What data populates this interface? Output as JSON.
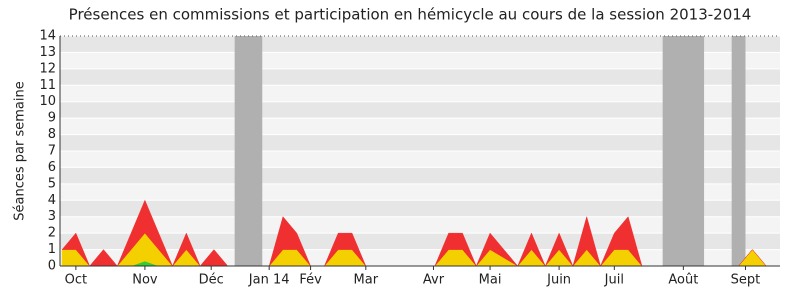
{
  "chart_data": {
    "type": "stacked_area",
    "title": "Présences en commissions et participation en hémicycle au cours de la session 2013-2014",
    "y_label": "Séances par semaine",
    "x": [
      0,
      1,
      2,
      3,
      4,
      5,
      6,
      7,
      8,
      9,
      10,
      11,
      12,
      13,
      14,
      15,
      16,
      17,
      18,
      19,
      20,
      21,
      22,
      23,
      24,
      25,
      26,
      27,
      28,
      29,
      30,
      31,
      32,
      33,
      34,
      35,
      36,
      37,
      38,
      39,
      40,
      41,
      42,
      43,
      44,
      45,
      46,
      47,
      48,
      49,
      50,
      51
    ],
    "series": [
      {
        "color": "#33cc33",
        "values": [
          0,
          0,
          0,
          0,
          0,
          0,
          0.3,
          0,
          0,
          0,
          0,
          0,
          0,
          0,
          0,
          0,
          0,
          0,
          0,
          0,
          0,
          0,
          0,
          0,
          0,
          0,
          0,
          0,
          0,
          0,
          0,
          0,
          0,
          0,
          0,
          0,
          0,
          0,
          0,
          0,
          0,
          0,
          0,
          0,
          0,
          0,
          0,
          0,
          0,
          0,
          0,
          0
        ]
      },
      {
        "color": "#f5d000",
        "values": [
          1,
          1,
          0,
          0,
          0,
          1,
          1.7,
          1,
          0,
          1,
          0,
          0,
          0,
          0,
          0,
          0,
          1,
          1,
          0,
          0,
          1,
          1,
          0,
          0,
          0,
          0,
          0,
          0,
          1,
          1,
          0,
          1,
          0.5,
          0,
          1,
          0,
          1,
          0,
          1,
          0,
          1,
          1,
          0,
          0,
          0,
          0,
          0,
          0,
          0,
          0,
          1,
          0
        ]
      },
      {
        "color": "#f03030",
        "values": [
          0,
          1,
          0,
          1,
          0,
          1,
          2,
          1,
          0,
          1,
          0,
          1,
          0,
          0,
          0,
          0,
          2,
          1,
          0,
          0,
          1,
          1,
          0,
          0,
          0,
          0,
          0,
          0,
          1,
          1,
          0,
          1,
          0.5,
          0,
          1,
          0,
          1,
          0,
          2,
          0,
          1,
          2,
          0,
          0,
          0,
          0,
          0,
          0,
          0,
          0,
          0,
          0
        ]
      }
    ],
    "shaded_ranges": [
      [
        12.5,
        14.5
      ],
      [
        43.5,
        46.5
      ],
      [
        48.5,
        49.5
      ]
    ],
    "xlim": [
      -0.15,
      52
    ],
    "xticks": [
      {
        "value": 1,
        "label": "Oct"
      },
      {
        "value": 6,
        "label": "Nov"
      },
      {
        "value": 10.8,
        "label": "Déc"
      },
      {
        "value": 15,
        "label": "Jan 14"
      },
      {
        "value": 18,
        "label": "Fév"
      },
      {
        "value": 22,
        "label": "Mar"
      },
      {
        "value": 26.9,
        "label": "Avr"
      },
      {
        "value": 31,
        "label": "Mai"
      },
      {
        "value": 36,
        "label": "Juin"
      },
      {
        "value": 40,
        "label": "Juil"
      },
      {
        "value": 45,
        "label": "Août"
      },
      {
        "value": 49.5,
        "label": "Sept"
      }
    ],
    "ylim": [
      0,
      14
    ],
    "yticks": [
      0,
      1,
      2,
      3,
      4,
      5,
      6,
      7,
      8,
      9,
      10,
      11,
      12,
      13,
      14
    ],
    "grid": true
  }
}
